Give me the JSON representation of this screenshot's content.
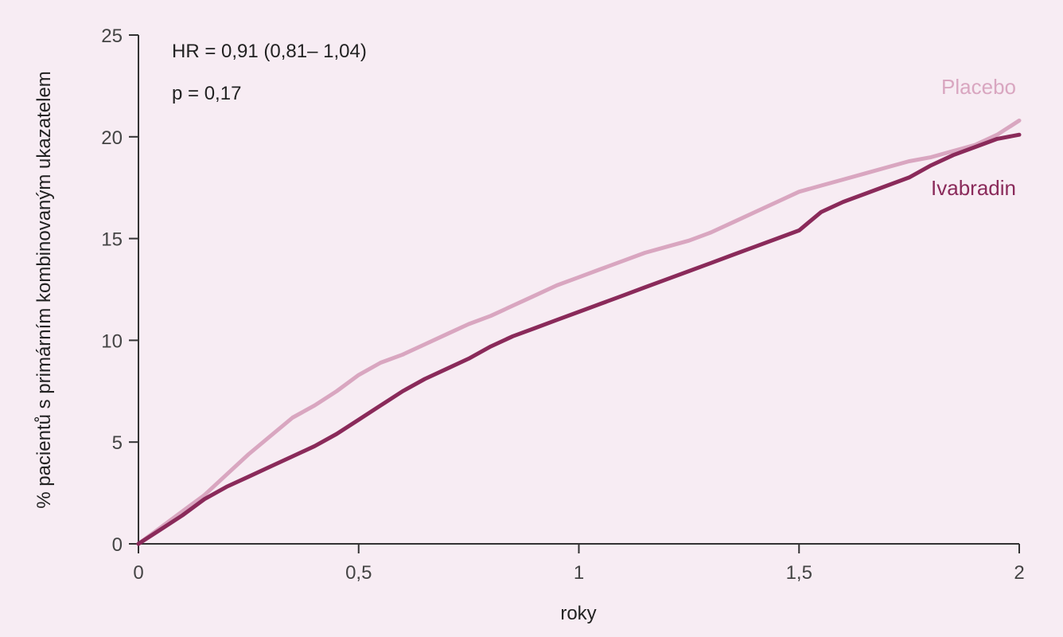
{
  "chart_data": {
    "type": "line",
    "title": "",
    "xlabel": "roky",
    "ylabel": "% pacientů s primárním kombinovaným ukazatelem",
    "xlim": [
      0,
      2
    ],
    "ylim": [
      0,
      25
    ],
    "xticks": [
      {
        "value": 0,
        "label": "0"
      },
      {
        "value": 0.5,
        "label": "0,5"
      },
      {
        "value": 1,
        "label": "1"
      },
      {
        "value": 1.5,
        "label": "1,5"
      },
      {
        "value": 2,
        "label": "2"
      }
    ],
    "yticks": [
      {
        "value": 0,
        "label": "0"
      },
      {
        "value": 5,
        "label": "5"
      },
      {
        "value": 10,
        "label": "10"
      },
      {
        "value": 15,
        "label": "15"
      },
      {
        "value": 20,
        "label": "20"
      },
      {
        "value": 25,
        "label": "25"
      }
    ],
    "grid": false,
    "annotations": [
      "HR = 0,91 (0,81– 1,04)",
      "p = 0,17"
    ],
    "series": [
      {
        "name": "Placebo",
        "color": "#d9a6c0",
        "x": [
          0,
          0.05,
          0.1,
          0.15,
          0.2,
          0.25,
          0.3,
          0.35,
          0.4,
          0.45,
          0.5,
          0.55,
          0.6,
          0.65,
          0.7,
          0.75,
          0.8,
          0.85,
          0.9,
          0.95,
          1.0,
          1.05,
          1.1,
          1.15,
          1.2,
          1.25,
          1.3,
          1.35,
          1.4,
          1.45,
          1.5,
          1.55,
          1.6,
          1.65,
          1.7,
          1.75,
          1.8,
          1.85,
          1.9,
          1.95,
          2.0
        ],
        "values": [
          0,
          0.8,
          1.6,
          2.4,
          3.4,
          4.4,
          5.3,
          6.2,
          6.8,
          7.5,
          8.3,
          8.9,
          9.3,
          9.8,
          10.3,
          10.8,
          11.2,
          11.7,
          12.2,
          12.7,
          13.1,
          13.5,
          13.9,
          14.3,
          14.6,
          14.9,
          15.3,
          15.8,
          16.3,
          16.8,
          17.3,
          17.6,
          17.9,
          18.2,
          18.5,
          18.8,
          19.0,
          19.3,
          19.6,
          20.1,
          20.8
        ]
      },
      {
        "name": "Ivabradin",
        "color": "#8a2a5a",
        "x": [
          0,
          0.05,
          0.1,
          0.15,
          0.2,
          0.25,
          0.3,
          0.35,
          0.4,
          0.45,
          0.5,
          0.55,
          0.6,
          0.65,
          0.7,
          0.75,
          0.8,
          0.85,
          0.9,
          0.95,
          1.0,
          1.05,
          1.1,
          1.15,
          1.2,
          1.25,
          1.3,
          1.35,
          1.4,
          1.45,
          1.5,
          1.55,
          1.6,
          1.65,
          1.7,
          1.75,
          1.8,
          1.85,
          1.9,
          1.95,
          2.0
        ],
        "values": [
          0,
          0.7,
          1.4,
          2.2,
          2.8,
          3.3,
          3.8,
          4.3,
          4.8,
          5.4,
          6.1,
          6.8,
          7.5,
          8.1,
          8.6,
          9.1,
          9.7,
          10.2,
          10.6,
          11.0,
          11.4,
          11.8,
          12.2,
          12.6,
          13.0,
          13.4,
          13.8,
          14.2,
          14.6,
          15.0,
          15.4,
          16.3,
          16.8,
          17.2,
          17.6,
          18.0,
          18.6,
          19.1,
          19.5,
          19.9,
          20.1
        ]
      }
    ]
  }
}
